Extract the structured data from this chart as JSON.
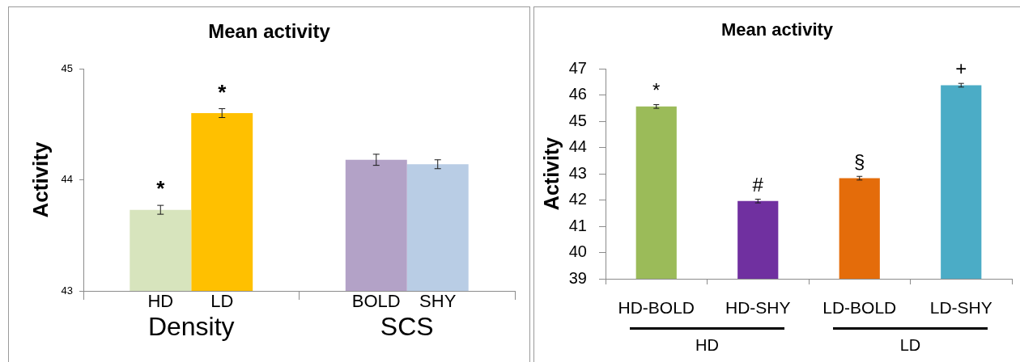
{
  "chart_data": [
    {
      "type": "bar",
      "title": "Mean activity",
      "ylabel": "Activity",
      "categories": [
        "HD",
        "LD",
        "BOLD",
        "SHY"
      ],
      "values": [
        43.73,
        44.6,
        44.18,
        44.14
      ],
      "colors": [
        "#d7e4bd",
        "#ffc000",
        "#b3a2c7",
        "#b9cde5"
      ],
      "errors": [
        0.04,
        0.04,
        0.05,
        0.04
      ],
      "value_labels": [
        "*",
        "*",
        null,
        null
      ],
      "annotations": [
        "Density",
        "SCS"
      ],
      "ylim": [
        43,
        45
      ],
      "yticks": [
        43,
        44,
        45
      ]
    },
    {
      "type": "bar",
      "title": "Mean activity",
      "ylabel": "Activity",
      "categories": [
        "HD-BOLD",
        "HD-SHY",
        "LD-BOLD",
        "LD-SHY"
      ],
      "values": [
        45.56,
        41.96,
        42.83,
        46.37
      ],
      "colors": [
        "#9bbb59",
        "#7030a0",
        "#e46c0a",
        "#4bacc6"
      ],
      "errors": [
        0.07,
        0.07,
        0.07,
        0.07
      ],
      "value_labels": [
        "*",
        "#",
        "§",
        "+"
      ],
      "annotations": [
        "HD",
        "LD"
      ],
      "ylim": [
        39,
        47
      ],
      "yticks": [
        39,
        40,
        41,
        42,
        43,
        44,
        45,
        46,
        47
      ]
    }
  ]
}
